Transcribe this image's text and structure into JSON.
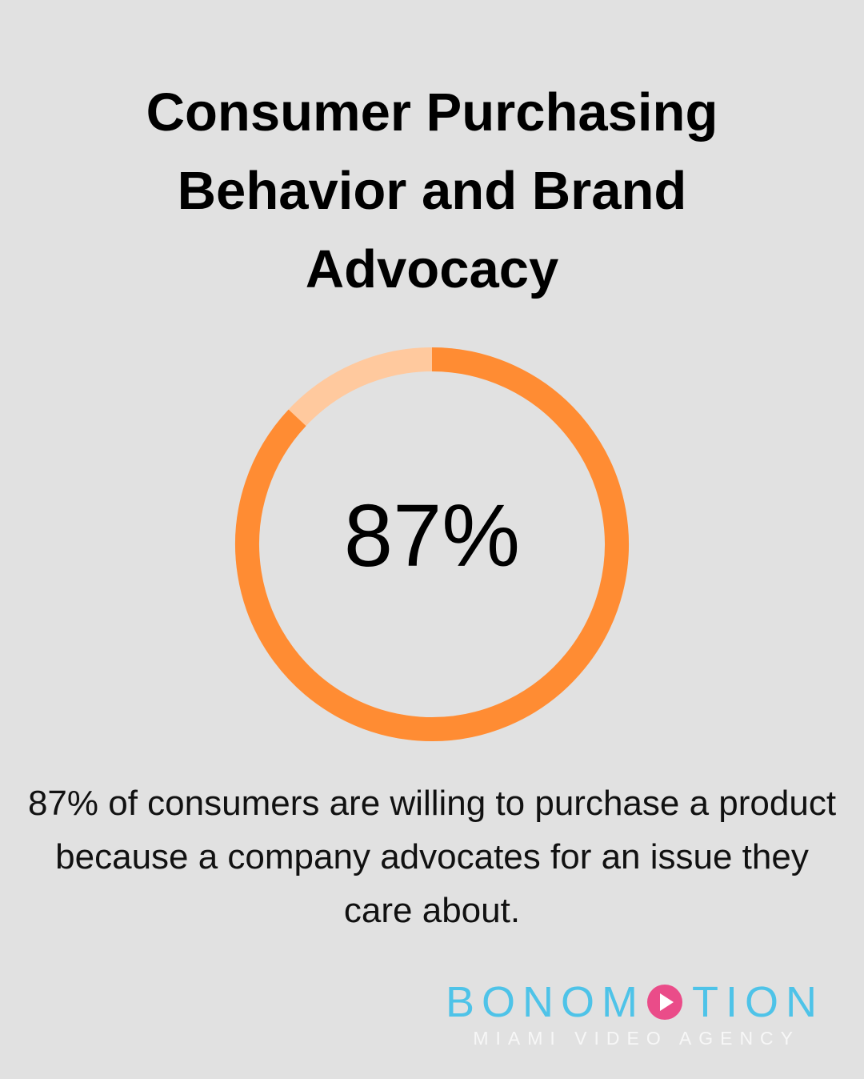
{
  "chart_data": {
    "type": "donut",
    "title": "Consumer Purchasing Behavior and Brand Advocacy",
    "values": [
      87
    ],
    "value_labels": [
      "87%"
    ],
    "ylim": [
      0,
      100
    ],
    "color": "#ff8c33",
    "track_color": "#ffc99e",
    "description": "87% of consumers are willing to purchase a product because a company advocates for an issue they care about."
  },
  "logo": {
    "name_start": "BONOM",
    "name_end": "TION",
    "tagline": "MIAMI VIDEO AGENCY"
  }
}
